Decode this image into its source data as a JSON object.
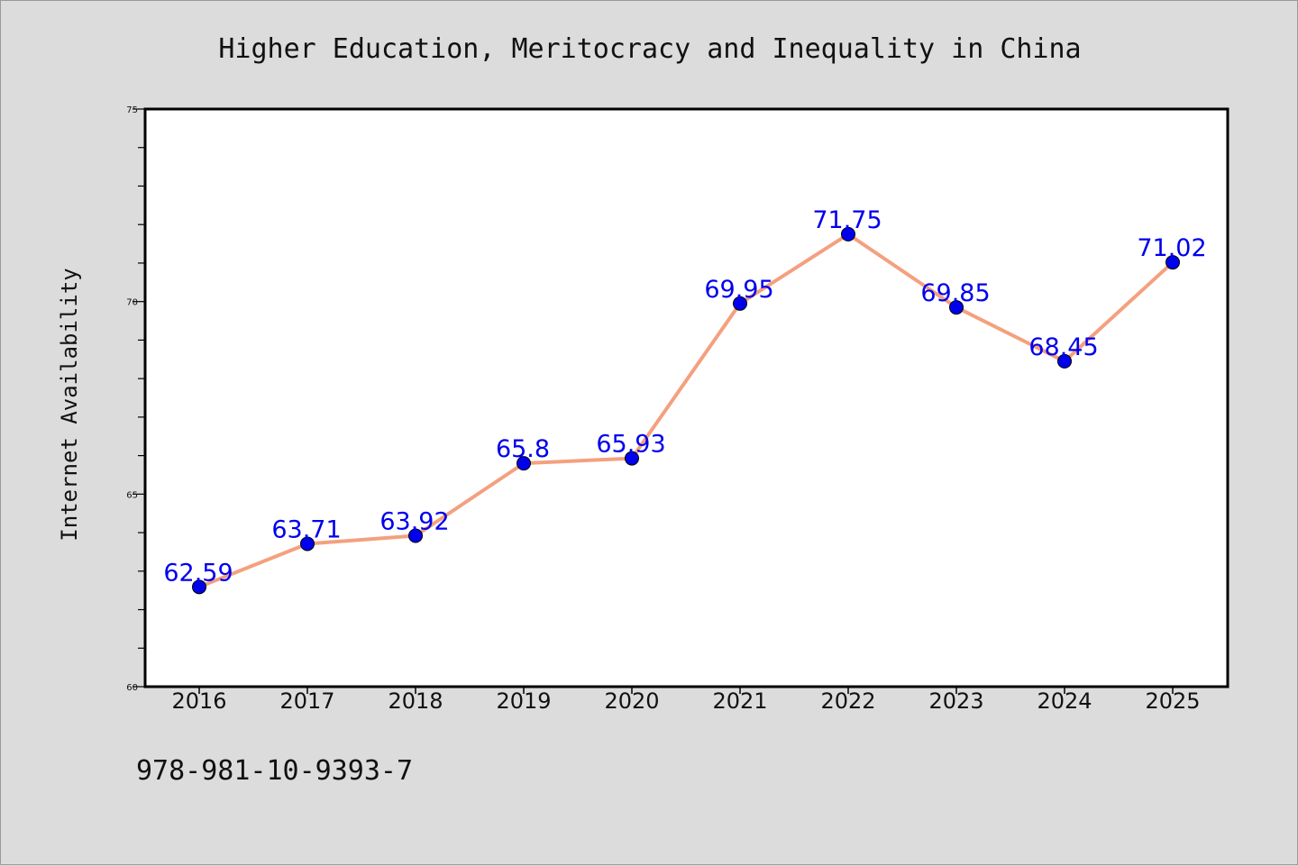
{
  "chart_data": {
    "type": "line",
    "title": "Higher Education, Meritocracy and Inequality in China",
    "ylabel": "Internet Availability",
    "xlabel": "",
    "categories": [
      "2016",
      "2017",
      "2018",
      "2019",
      "2020",
      "2021",
      "2022",
      "2023",
      "2024",
      "2025"
    ],
    "values": [
      62.59,
      63.71,
      63.92,
      65.8,
      65.93,
      69.95,
      71.75,
      69.85,
      68.45,
      71.02
    ],
    "data_labels": [
      "62.59",
      "63.71",
      "63.92",
      "65.8",
      "65.93",
      "69.95",
      "71.75",
      "69.85",
      "68.45",
      "71.02"
    ],
    "ylim": [
      60,
      75
    ],
    "yticks": [
      60,
      65,
      70,
      75
    ],
    "ytick_labels": [
      "60",
      "65",
      "70",
      "75"
    ],
    "grid": false,
    "line_color": "#f4a07f",
    "marker_color": "#0000ee",
    "label_color": "#0000ee"
  },
  "footer": {
    "isbn": "978-981-10-9393-7"
  }
}
